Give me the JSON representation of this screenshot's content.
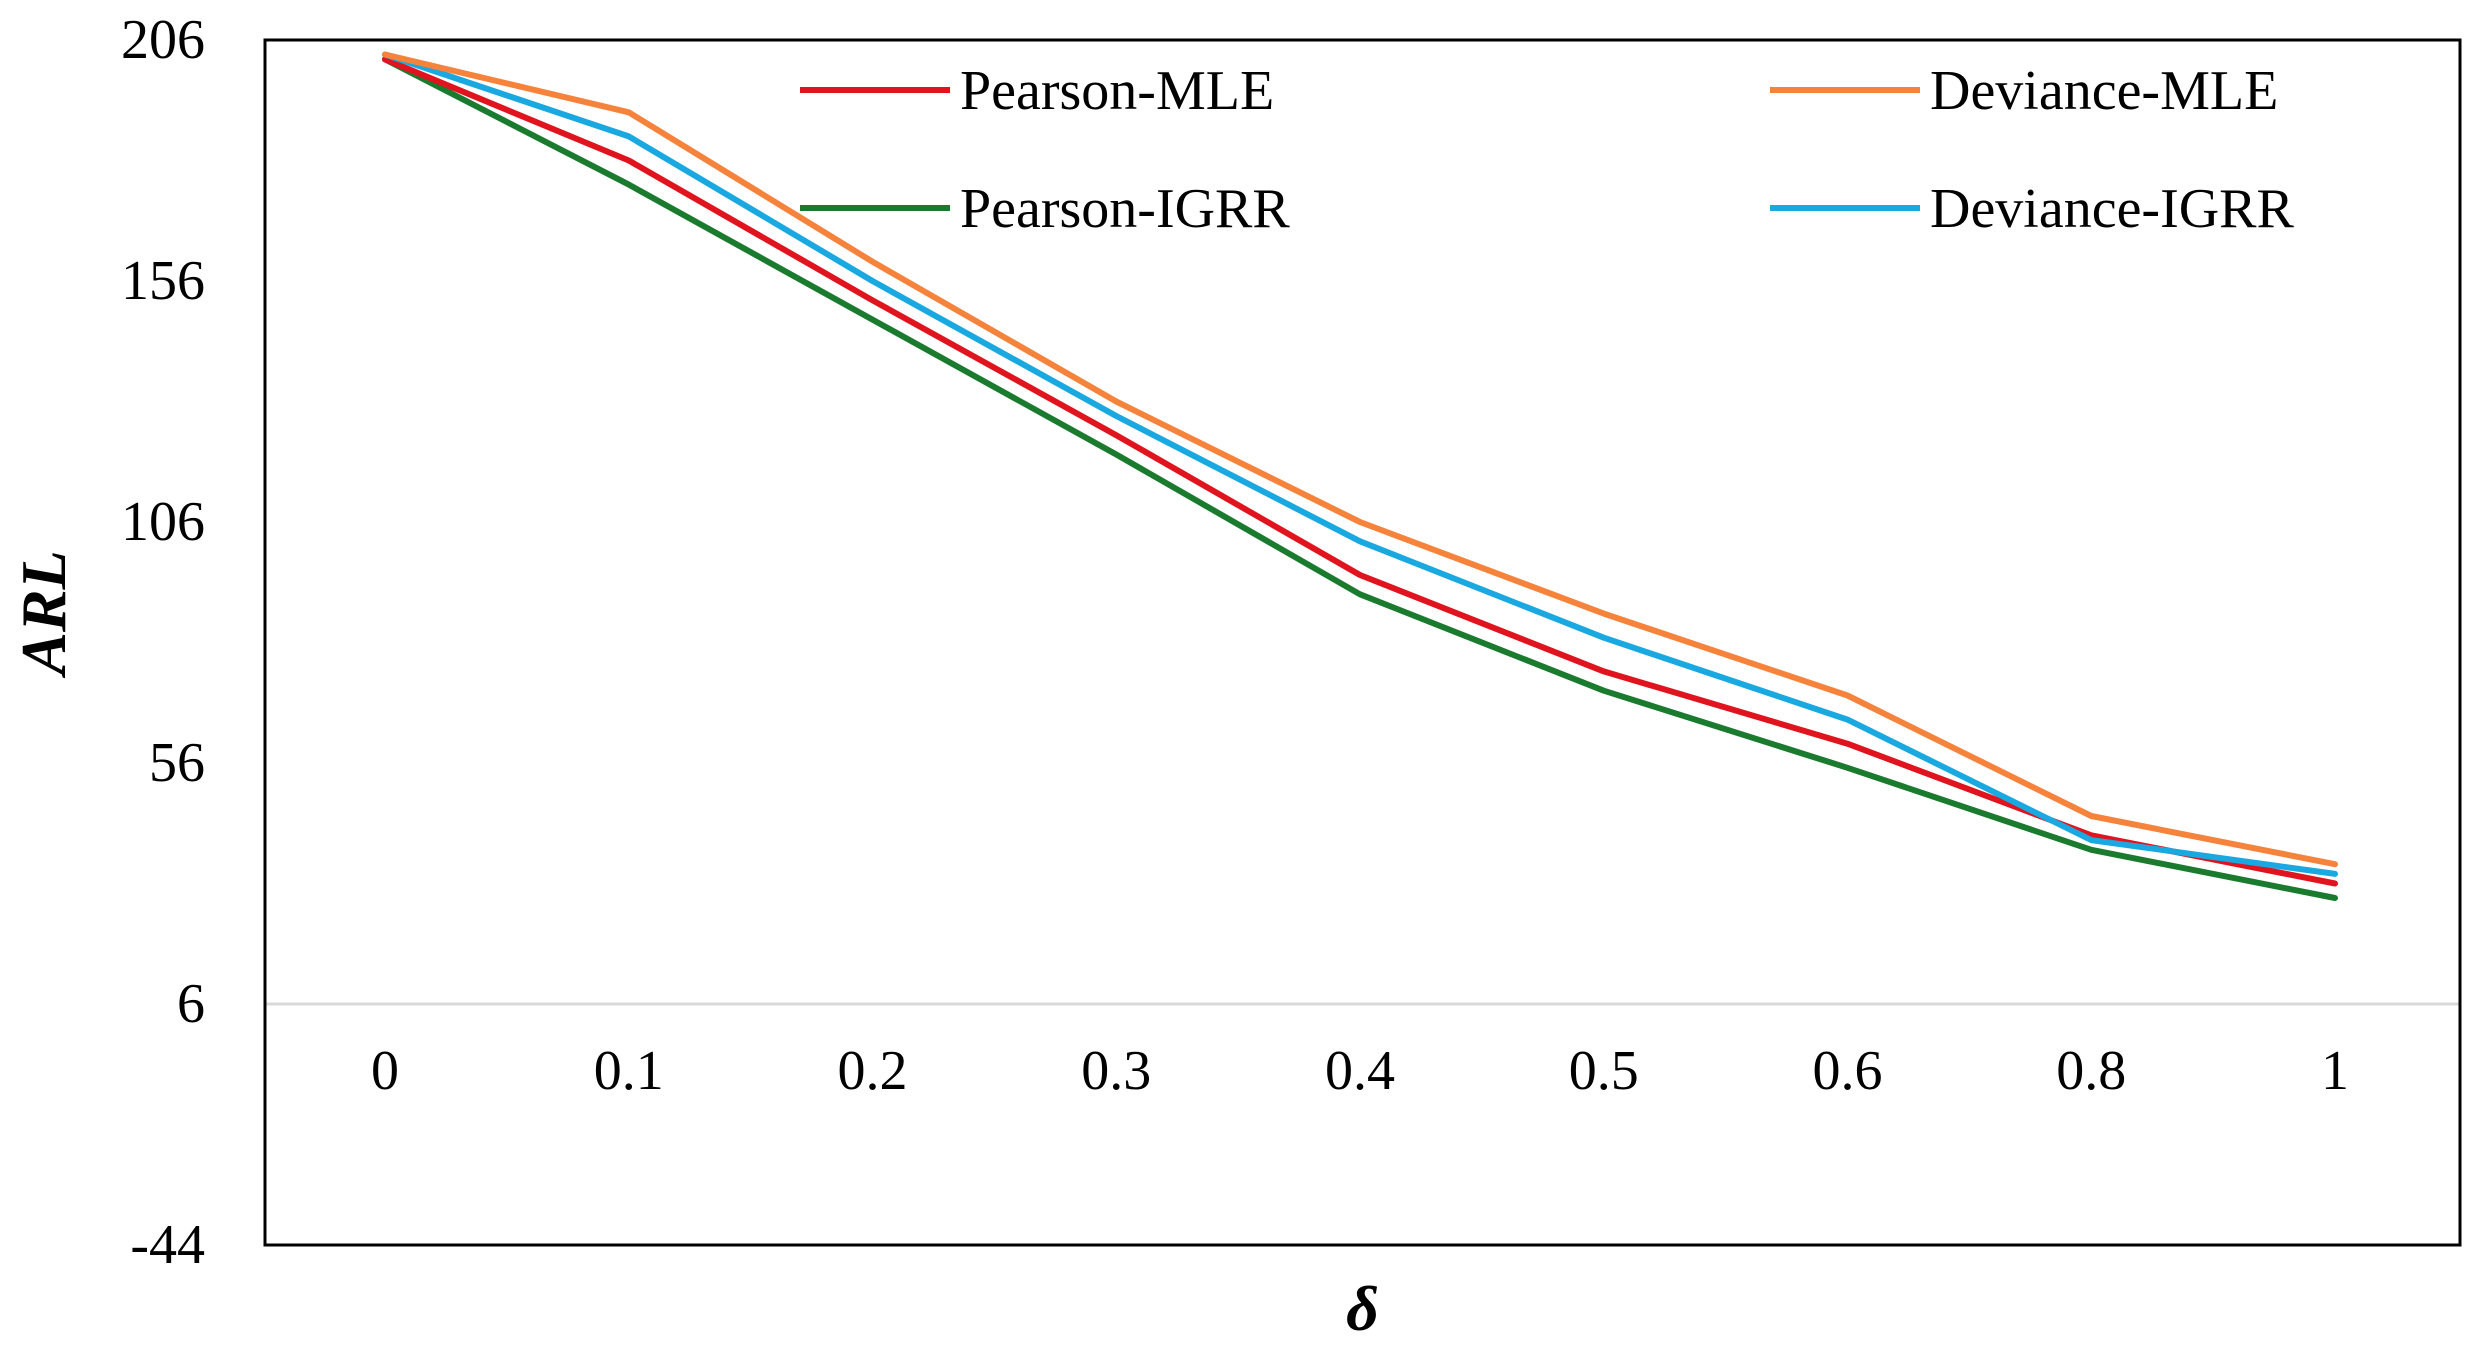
{
  "chart_data": {
    "type": "line",
    "title": "",
    "xlabel": "δ",
    "ylabel": "ARL",
    "categories": [
      "0",
      "0.1",
      "0.2",
      "0.3",
      "0.4",
      "0.5",
      "0.6",
      "0.8",
      "1"
    ],
    "ylim": [
      -44,
      206
    ],
    "yticks": [
      "206",
      "156",
      "106",
      "56",
      "6",
      "-44"
    ],
    "y_reference_line": 6,
    "grid": false,
    "legend_position": "top",
    "series": [
      {
        "name": "Pearson-MLE",
        "color": "#e0141e",
        "values": [
          202,
          181,
          152,
          124,
          95,
          75,
          60,
          41,
          31
        ]
      },
      {
        "name": "Deviance-MLE",
        "color": "#f5833c",
        "values": [
          203,
          191,
          160,
          131,
          106,
          87,
          70,
          45,
          35
        ]
      },
      {
        "name": "Pearson-IGRR",
        "color": "#1a7a2e",
        "values": [
          202,
          176,
          148,
          120,
          91,
          71,
          55,
          38,
          28
        ]
      },
      {
        "name": "Deviance-IGRR",
        "color": "#1aa8e0",
        "values": [
          203,
          186,
          156,
          128,
          102,
          82,
          65,
          40,
          33
        ]
      }
    ]
  }
}
